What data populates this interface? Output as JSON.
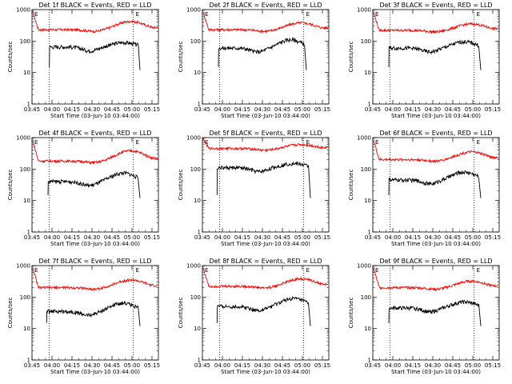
{
  "chart_data": [
    {
      "type": "line",
      "title": "Det 1f BLACK = Events, RED = LLD",
      "xlabel": "Start Time (03-Jun-10 03:44:00)",
      "ylabel": "Counts/sec",
      "xlim": [
        3.75,
        5.33
      ],
      "ylim": [
        1,
        1000
      ],
      "yscale": "log",
      "xticks": [
        "03:45",
        "04:00",
        "04:15",
        "04:30",
        "04:45",
        "05:00",
        "05:15"
      ],
      "yticks": [
        "1",
        "10",
        "100",
        "1000"
      ],
      "marker_label": "E",
      "vlines": [
        "03:58",
        "05:01"
      ],
      "red": {
        "spike": 1000,
        "base": 230,
        "bump": 420
      },
      "black": {
        "start": "03:58",
        "end": "05:06",
        "base": 65,
        "bump": 90
      }
    },
    {
      "type": "line",
      "title": "Det 2f BLACK = Events, RED = LLD",
      "xlabel": "Start Time (03-Jun-10 03:44:00)",
      "ylabel": "Counts/sec",
      "xlim": [
        3.75,
        5.33
      ],
      "ylim": [
        1,
        1000
      ],
      "yscale": "log",
      "xticks": [
        "03:45",
        "04:00",
        "04:15",
        "04:30",
        "04:45",
        "05:00",
        "05:15"
      ],
      "yticks": [
        "1",
        "10",
        "100",
        "1000"
      ],
      "marker_label": "E",
      "vlines": [
        "03:58",
        "05:01"
      ],
      "red": {
        "spike": 1000,
        "base": 230,
        "bump": 380
      },
      "black": {
        "start": "03:57",
        "end": "05:03",
        "base": 60,
        "bump": 110
      }
    },
    {
      "type": "line",
      "title": "Det 3f BLACK = Events, RED = LLD",
      "xlabel": "Start Time (03-Jun-10 03:44:00)",
      "ylabel": "Counts/sec",
      "xlim": [
        3.75,
        5.33
      ],
      "ylim": [
        1,
        1000
      ],
      "yscale": "log",
      "xticks": [
        "03:45",
        "04:00",
        "04:15",
        "04:30",
        "04:45",
        "05:00",
        "05:15"
      ],
      "yticks": [
        "1",
        "10",
        "100",
        "1000"
      ],
      "marker_label": "E",
      "vlines": [
        "03:58",
        "05:01"
      ],
      "red": {
        "spike": 1000,
        "base": 220,
        "bump": 350
      },
      "black": {
        "start": "03:57",
        "end": "05:06",
        "base": 60,
        "bump": 95
      }
    },
    {
      "type": "line",
      "title": "Det 4f BLACK = Events, RED = LLD",
      "xlabel": "Start Time (03-Jun-10 03:44:00)",
      "ylabel": "Counts/sec",
      "xlim": [
        3.75,
        5.33
      ],
      "ylim": [
        1,
        1000
      ],
      "yscale": "log",
      "xticks": [
        "03:45",
        "04:00",
        "04:15",
        "04:30",
        "04:45",
        "05:00",
        "05:15"
      ],
      "yticks": [
        "1",
        "10",
        "100",
        "1000"
      ],
      "marker_label": "E",
      "vlines": [
        "03:58",
        "05:01"
      ],
      "red": {
        "spike": 1000,
        "base": 180,
        "bump": 380
      },
      "black": {
        "start": "03:57",
        "end": "05:06",
        "base": 40,
        "bump": 75
      }
    },
    {
      "type": "line",
      "title": "Det 5f BLACK = Events, RED = LLD",
      "xlabel": "Start Time (03-Jun-10 03:44:00)",
      "ylabel": "Counts/sec",
      "xlim": [
        3.75,
        5.33
      ],
      "ylim": [
        1,
        1000
      ],
      "yscale": "log",
      "xticks": [
        "03:45",
        "04:00",
        "04:15",
        "04:30",
        "04:45",
        "05:00",
        "05:15"
      ],
      "yticks": [
        "1",
        "10",
        "100",
        "1000"
      ],
      "marker_label": "E",
      "vlines": [
        "03:58",
        "05:01"
      ],
      "red": {
        "spike": 1000,
        "base": 450,
        "bump": 600
      },
      "black": {
        "start": "03:56",
        "end": "05:06",
        "base": 110,
        "bump": 150
      }
    },
    {
      "type": "line",
      "title": "Det 6f BLACK = Events, RED = LLD",
      "xlabel": "Start Time (03-Jun-10 03:44:00)",
      "ylabel": "Counts/sec",
      "xlim": [
        3.75,
        5.33
      ],
      "ylim": [
        1,
        1000
      ],
      "yscale": "log",
      "xticks": [
        "03:45",
        "04:00",
        "04:15",
        "04:30",
        "04:45",
        "05:00",
        "05:15"
      ],
      "yticks": [
        "1",
        "10",
        "100",
        "1000"
      ],
      "marker_label": "E",
      "vlines": [
        "03:58",
        "05:01"
      ],
      "red": {
        "spike": 1000,
        "base": 200,
        "bump": 350
      },
      "black": {
        "start": "03:57",
        "end": "05:06",
        "base": 45,
        "bump": 80
      }
    },
    {
      "type": "line",
      "title": "Det 7f BLACK = Events, RED = LLD",
      "xlabel": "Start Time (03-Jun-10 03:44:00)",
      "ylabel": "Counts/sec",
      "xlim": [
        3.75,
        5.33
      ],
      "ylim": [
        1,
        1000
      ],
      "yscale": "log",
      "xticks": [
        "03:45",
        "04:00",
        "04:15",
        "04:30",
        "04:45",
        "05:00",
        "05:15"
      ],
      "yticks": [
        "1",
        "10",
        "100",
        "1000"
      ],
      "marker_label": "E",
      "vlines": [
        "03:58",
        "05:01"
      ],
      "red": {
        "spike": 1000,
        "base": 200,
        "bump": 350
      },
      "black": {
        "start": "03:56",
        "end": "05:06",
        "base": 35,
        "bump": 65
      }
    },
    {
      "type": "line",
      "title": "Det 8f BLACK = Events, RED = LLD",
      "xlabel": "Start Time (03-Jun-10 03:44:00)",
      "ylabel": "Counts/sec",
      "xlim": [
        3.75,
        5.33
      ],
      "ylim": [
        1,
        1000
      ],
      "yscale": "log",
      "xticks": [
        "03:45",
        "04:00",
        "04:15",
        "04:30",
        "04:45",
        "05:00",
        "05:15"
      ],
      "yticks": [
        "1",
        "10",
        "100",
        "1000"
      ],
      "marker_label": "E",
      "vlines": [
        "03:58",
        "05:01"
      ],
      "red": {
        "spike": 1000,
        "base": 220,
        "bump": 380
      },
      "black": {
        "start": "03:56",
        "end": "05:06",
        "base": 50,
        "bump": 90
      }
    },
    {
      "type": "line",
      "title": "Det 9f BLACK = Events, RED = LLD",
      "xlabel": "Start Time (03-Jun-10 03:44:00)",
      "ylabel": "Counts/sec",
      "xlim": [
        3.75,
        5.33
      ],
      "ylim": [
        1,
        1000
      ],
      "yscale": "log",
      "xticks": [
        "03:45",
        "04:00",
        "04:15",
        "04:30",
        "04:45",
        "05:00",
        "05:15"
      ],
      "yticks": [
        "1",
        "10",
        "100",
        "1000"
      ],
      "marker_label": "E",
      "vlines": [
        "03:58",
        "05:01"
      ],
      "red": {
        "spike": 1000,
        "base": 200,
        "bump": 320
      },
      "black": {
        "start": "03:57",
        "end": "05:06",
        "base": 45,
        "bump": 70
      }
    }
  ],
  "colors": {
    "events": "#000000",
    "lld": "#ff0000",
    "background": "#ffffff"
  }
}
